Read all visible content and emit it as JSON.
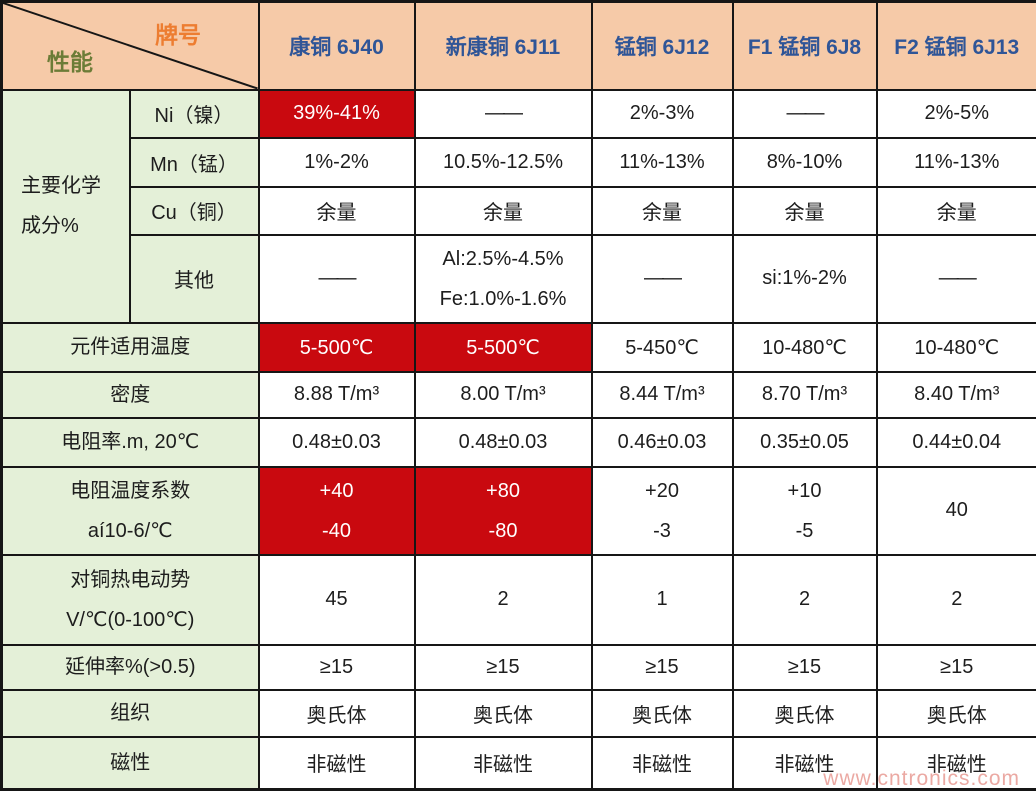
{
  "table": {
    "corner": {
      "brand": "牌号",
      "performance": "性能"
    },
    "columns": [
      "康铜 6J40",
      "新康铜 6J11",
      "锰铜 6J12",
      "F1 锰铜 6J8",
      "F2 锰铜 6J13"
    ],
    "chem_group": {
      "label_lines": [
        "主要化学",
        "成分%"
      ],
      "subrows": [
        {
          "sublabel": "Ni（镍）",
          "cells": [
            {
              "text": "39%-41%",
              "red": true
            },
            {
              "text": "——"
            },
            {
              "text": "2%-3%"
            },
            {
              "text": "——"
            },
            {
              "text": "2%-5%"
            }
          ]
        },
        {
          "sublabel": "Mn（锰）",
          "cells": [
            {
              "text": "1%-2%"
            },
            {
              "text": "10.5%-12.5%"
            },
            {
              "text": "11%-13%"
            },
            {
              "text": "8%-10%"
            },
            {
              "text": "11%-13%"
            }
          ]
        },
        {
          "sublabel": "Cu（铜）",
          "cells": [
            {
              "text": "余量"
            },
            {
              "text": "余量"
            },
            {
              "text": "余量"
            },
            {
              "text": "余量"
            },
            {
              "text": "余量"
            }
          ]
        },
        {
          "sublabel": "其他",
          "cells": [
            {
              "text": "——"
            },
            {
              "lines": [
                "Al:2.5%-4.5%",
                "Fe:1.0%-1.6%"
              ]
            },
            {
              "text": "——"
            },
            {
              "text": "si:1%-2%"
            },
            {
              "text": "——"
            }
          ]
        }
      ]
    },
    "rows": [
      {
        "label_lines": [
          "元件适用温度"
        ],
        "cells": [
          {
            "text": "5-500℃",
            "red": true
          },
          {
            "text": "5-500℃",
            "red": true
          },
          {
            "text": "5-450℃"
          },
          {
            "text": "10-480℃"
          },
          {
            "text": "10-480℃"
          }
        ]
      },
      {
        "label_lines": [
          "密度"
        ],
        "cells": [
          {
            "text": "8.88 T/m³"
          },
          {
            "text": "8.00 T/m³"
          },
          {
            "text": "8.44 T/m³"
          },
          {
            "text": "8.70 T/m³"
          },
          {
            "text": "8.40 T/m³"
          }
        ]
      },
      {
        "label_lines": [
          "电阻率.m, 20℃"
        ],
        "cells": [
          {
            "text": "0.48±0.03"
          },
          {
            "text": "0.48±0.03"
          },
          {
            "text": "0.46±0.03"
          },
          {
            "text": "0.35±0.05"
          },
          {
            "text": "0.44±0.04"
          }
        ]
      },
      {
        "label_lines": [
          "电阻温度系数",
          "aí10-6/℃"
        ],
        "cells": [
          {
            "lines": [
              "+40",
              "-40"
            ],
            "red": true
          },
          {
            "lines": [
              "+80",
              "-80"
            ],
            "red": true
          },
          {
            "lines": [
              "+20",
              "-3"
            ]
          },
          {
            "lines": [
              "+10",
              "-5"
            ]
          },
          {
            "text": "40"
          }
        ]
      },
      {
        "label_lines": [
          "对铜热电动势",
          "V/℃(0-100℃)"
        ],
        "cells": [
          {
            "text": "45"
          },
          {
            "text": "2"
          },
          {
            "text": "1"
          },
          {
            "text": "2"
          },
          {
            "text": "2"
          }
        ]
      },
      {
        "label_lines": [
          "延伸率%(>0.5)"
        ],
        "cells": [
          {
            "text": "≥15"
          },
          {
            "text": "≥15"
          },
          {
            "text": "≥15"
          },
          {
            "text": "≥15"
          },
          {
            "text": "≥15"
          }
        ]
      },
      {
        "label_lines": [
          "组织"
        ],
        "cells": [
          {
            "text": "奥氏体"
          },
          {
            "text": "奥氏体"
          },
          {
            "text": "奥氏体"
          },
          {
            "text": "奥氏体"
          },
          {
            "text": "奥氏体"
          }
        ]
      },
      {
        "label_lines": [
          "磁性"
        ],
        "cells": [
          {
            "text": "非磁性"
          },
          {
            "text": "非磁性"
          },
          {
            "text": "非磁性"
          },
          {
            "text": "非磁性"
          },
          {
            "text": "非磁性"
          }
        ]
      }
    ]
  },
  "watermark": "www.cntronics.com",
  "colors": {
    "header_bg": "#F6CAA8",
    "label_bg": "#E4F0D8",
    "red_bg": "#C9090F",
    "header_text": "#2F5597",
    "brand_text": "#ED7D31",
    "performance_text": "#6C7C37",
    "border": "#161616"
  },
  "chart_data": {
    "type": "table",
    "corner_labels": {
      "top_right": "牌号",
      "bottom_left": "性能"
    },
    "columns": [
      "康铜 6J40",
      "新康铜 6J11",
      "锰铜 6J12",
      "F1 锰铜 6J8",
      "F2 锰铜 6J13"
    ],
    "rows": [
      {
        "label": "主要化学成分% / Ni（镍）",
        "values": [
          "39%-41%",
          "——",
          "2%-3%",
          "——",
          "2%-5%"
        ]
      },
      {
        "label": "主要化学成分% / Mn（锰）",
        "values": [
          "1%-2%",
          "10.5%-12.5%",
          "11%-13%",
          "8%-10%",
          "11%-13%"
        ]
      },
      {
        "label": "主要化学成分% / Cu（铜）",
        "values": [
          "余量",
          "余量",
          "余量",
          "余量",
          "余量"
        ]
      },
      {
        "label": "主要化学成分% / 其他",
        "values": [
          "——",
          "Al:2.5%-4.5% Fe:1.0%-1.6%",
          "——",
          "si:1%-2%",
          "——"
        ]
      },
      {
        "label": "元件适用温度",
        "values": [
          "5-500℃",
          "5-500℃",
          "5-450℃",
          "10-480℃",
          "10-480℃"
        ]
      },
      {
        "label": "密度",
        "values": [
          "8.88 T/m³",
          "8.00 T/m³",
          "8.44 T/m³",
          "8.70 T/m³",
          "8.40 T/m³"
        ]
      },
      {
        "label": "电阻率.m, 20℃",
        "values": [
          "0.48±0.03",
          "0.48±0.03",
          "0.46±0.03",
          "0.35±0.05",
          "0.44±0.04"
        ]
      },
      {
        "label": "电阻温度系数 aí10-6/℃",
        "values": [
          "+40 / -40",
          "+80 / -80",
          "+20 / -3",
          "+10 / -5",
          "40"
        ]
      },
      {
        "label": "对铜热电动势 V/℃(0-100℃)",
        "values": [
          "45",
          "2",
          "1",
          "2",
          "2"
        ]
      },
      {
        "label": "延伸率%(>0.5)",
        "values": [
          "≥15",
          "≥15",
          "≥15",
          "≥15",
          "≥15"
        ]
      },
      {
        "label": "组织",
        "values": [
          "奥氏体",
          "奥氏体",
          "奥氏体",
          "奥氏体",
          "奥氏体"
        ]
      },
      {
        "label": "磁性",
        "values": [
          "非磁性",
          "非磁性",
          "非磁性",
          "非磁性",
          "非磁性"
        ]
      }
    ],
    "red_highlight_cells": [
      {
        "row": "Ni（镍）",
        "column": "康铜 6J40"
      },
      {
        "row": "元件适用温度",
        "column": "康铜 6J40"
      },
      {
        "row": "元件适用温度",
        "column": "新康铜 6J11"
      },
      {
        "row": "电阻温度系数 aí10-6/℃",
        "column": "康铜 6J40"
      },
      {
        "row": "电阻温度系数 aí10-6/℃",
        "column": "新康铜 6J11"
      }
    ],
    "legend_position": "none",
    "grid": true
  }
}
